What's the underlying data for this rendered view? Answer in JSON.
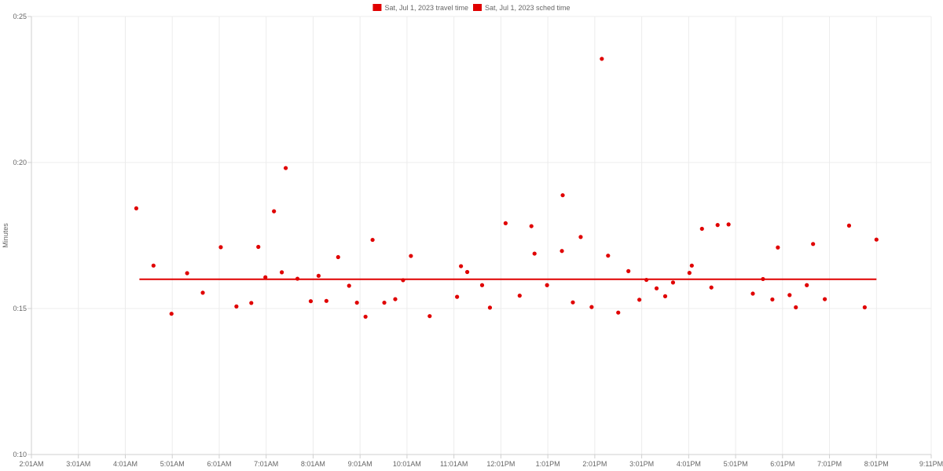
{
  "chart_data": {
    "type": "scatter",
    "title": "",
    "xlabel": "",
    "ylabel": "Minutes",
    "ylim": [
      0.1,
      0.25
    ],
    "xlim": [
      "2:01AM",
      "9:11PM"
    ],
    "x_ticks": [
      "2:01AM",
      "3:01AM",
      "4:01AM",
      "5:01AM",
      "6:01AM",
      "7:01AM",
      "8:01AM",
      "9:01AM",
      "10:01AM",
      "11:01AM",
      "12:01PM",
      "1:01PM",
      "2:01PM",
      "3:01PM",
      "4:01PM",
      "5:01PM",
      "6:01PM",
      "7:01PM",
      "8:01PM",
      "9:11PM"
    ],
    "y_ticks": [
      "0:10",
      "0:15",
      "0:20",
      "0:25"
    ],
    "grid": true,
    "legend_position": "top-center",
    "legend": [
      {
        "label": "Sat, Jul 1, 2023 travel time",
        "color": "#e00000"
      },
      {
        "label": "Sat, Jul 1, 2023 sched time",
        "color": "#e00000"
      }
    ],
    "series": [
      {
        "name": "Sat, Jul 1, 2023 travel time",
        "type": "scatter",
        "color": "#e00000",
        "points": [
          {
            "x": "4:15AM",
            "y": 0.1843
          },
          {
            "x": "4:37AM",
            "y": 0.1647
          },
          {
            "x": "5:00AM",
            "y": 0.1482
          },
          {
            "x": "5:20AM",
            "y": 0.1621
          },
          {
            "x": "5:40AM",
            "y": 0.1554
          },
          {
            "x": "6:03AM",
            "y": 0.171
          },
          {
            "x": "6:23AM",
            "y": 0.1507
          },
          {
            "x": "6:42AM",
            "y": 0.1519
          },
          {
            "x": "6:51AM",
            "y": 0.1711
          },
          {
            "x": "7:00AM",
            "y": 0.1607
          },
          {
            "x": "7:11AM",
            "y": 0.1833
          },
          {
            "x": "7:21AM",
            "y": 0.1624
          },
          {
            "x": "7:26AM",
            "y": 0.1981
          },
          {
            "x": "7:41AM",
            "y": 0.1602
          },
          {
            "x": "7:58AM",
            "y": 0.1525
          },
          {
            "x": "8:08AM",
            "y": 0.1612
          },
          {
            "x": "8:18AM",
            "y": 0.1526
          },
          {
            "x": "8:33AM",
            "y": 0.1676
          },
          {
            "x": "8:47AM",
            "y": 0.1578
          },
          {
            "x": "8:57AM",
            "y": 0.152
          },
          {
            "x": "9:08AM",
            "y": 0.1472
          },
          {
            "x": "9:17AM",
            "y": 0.1735
          },
          {
            "x": "9:32AM",
            "y": 0.152
          },
          {
            "x": "9:46AM",
            "y": 0.1532
          },
          {
            "x": "9:56AM",
            "y": 0.1597
          },
          {
            "x": "10:06AM",
            "y": 0.168
          },
          {
            "x": "10:30AM",
            "y": 0.1474
          },
          {
            "x": "11:05AM",
            "y": 0.154
          },
          {
            "x": "11:10AM",
            "y": 0.1645
          },
          {
            "x": "11:18AM",
            "y": 0.1625
          },
          {
            "x": "11:37AM",
            "y": 0.158
          },
          {
            "x": "11:47AM",
            "y": 0.1503
          },
          {
            "x": "12:07PM",
            "y": 0.1792
          },
          {
            "x": "12:25PM",
            "y": 0.1544
          },
          {
            "x": "12:40PM",
            "y": 0.1782
          },
          {
            "x": "12:44PM",
            "y": 0.1688
          },
          {
            "x": "1:00PM",
            "y": 0.158
          },
          {
            "x": "1:20PM",
            "y": 0.1888
          },
          {
            "x": "1:19PM",
            "y": 0.1697
          },
          {
            "x": "1:33PM",
            "y": 0.1521
          },
          {
            "x": "1:43PM",
            "y": 0.1745
          },
          {
            "x": "1:57PM",
            "y": 0.1505
          },
          {
            "x": "2:10PM",
            "y": 0.2355
          },
          {
            "x": "2:18PM",
            "y": 0.1681
          },
          {
            "x": "2:31PM",
            "y": 0.1486
          },
          {
            "x": "2:44PM",
            "y": 0.1628
          },
          {
            "x": "2:58PM",
            "y": 0.153
          },
          {
            "x": "3:07PM",
            "y": 0.1598
          },
          {
            "x": "3:20PM",
            "y": 0.1569
          },
          {
            "x": "3:31PM",
            "y": 0.1542
          },
          {
            "x": "3:41PM",
            "y": 0.1589
          },
          {
            "x": "4:02PM",
            "y": 0.1622
          },
          {
            "x": "4:05PM",
            "y": 0.1647
          },
          {
            "x": "4:18PM",
            "y": 0.1773
          },
          {
            "x": "4:30PM",
            "y": 0.1572
          },
          {
            "x": "4:38PM",
            "y": 0.1786
          },
          {
            "x": "4:52PM",
            "y": 0.1788
          },
          {
            "x": "5:23PM",
            "y": 0.1551
          },
          {
            "x": "5:36PM",
            "y": 0.1601
          },
          {
            "x": "5:48PM",
            "y": 0.1531
          },
          {
            "x": "5:55PM",
            "y": 0.1709
          },
          {
            "x": "6:10PM",
            "y": 0.1546
          },
          {
            "x": "6:18PM",
            "y": 0.1504
          },
          {
            "x": "6:32PM",
            "y": 0.158
          },
          {
            "x": "6:40PM",
            "y": 0.1721
          },
          {
            "x": "6:55PM",
            "y": 0.1532
          },
          {
            "x": "7:26PM",
            "y": 0.1784
          },
          {
            "x": "7:46PM",
            "y": 0.1504
          },
          {
            "x": "8:01PM",
            "y": 0.1736
          }
        ]
      },
      {
        "name": "Sat, Jul 1, 2023 sched time",
        "type": "line",
        "color": "#e00000",
        "points": [
          {
            "x": "4:19AM",
            "y": 0.16
          },
          {
            "x": "8:01PM",
            "y": 0.16
          }
        ]
      }
    ]
  }
}
